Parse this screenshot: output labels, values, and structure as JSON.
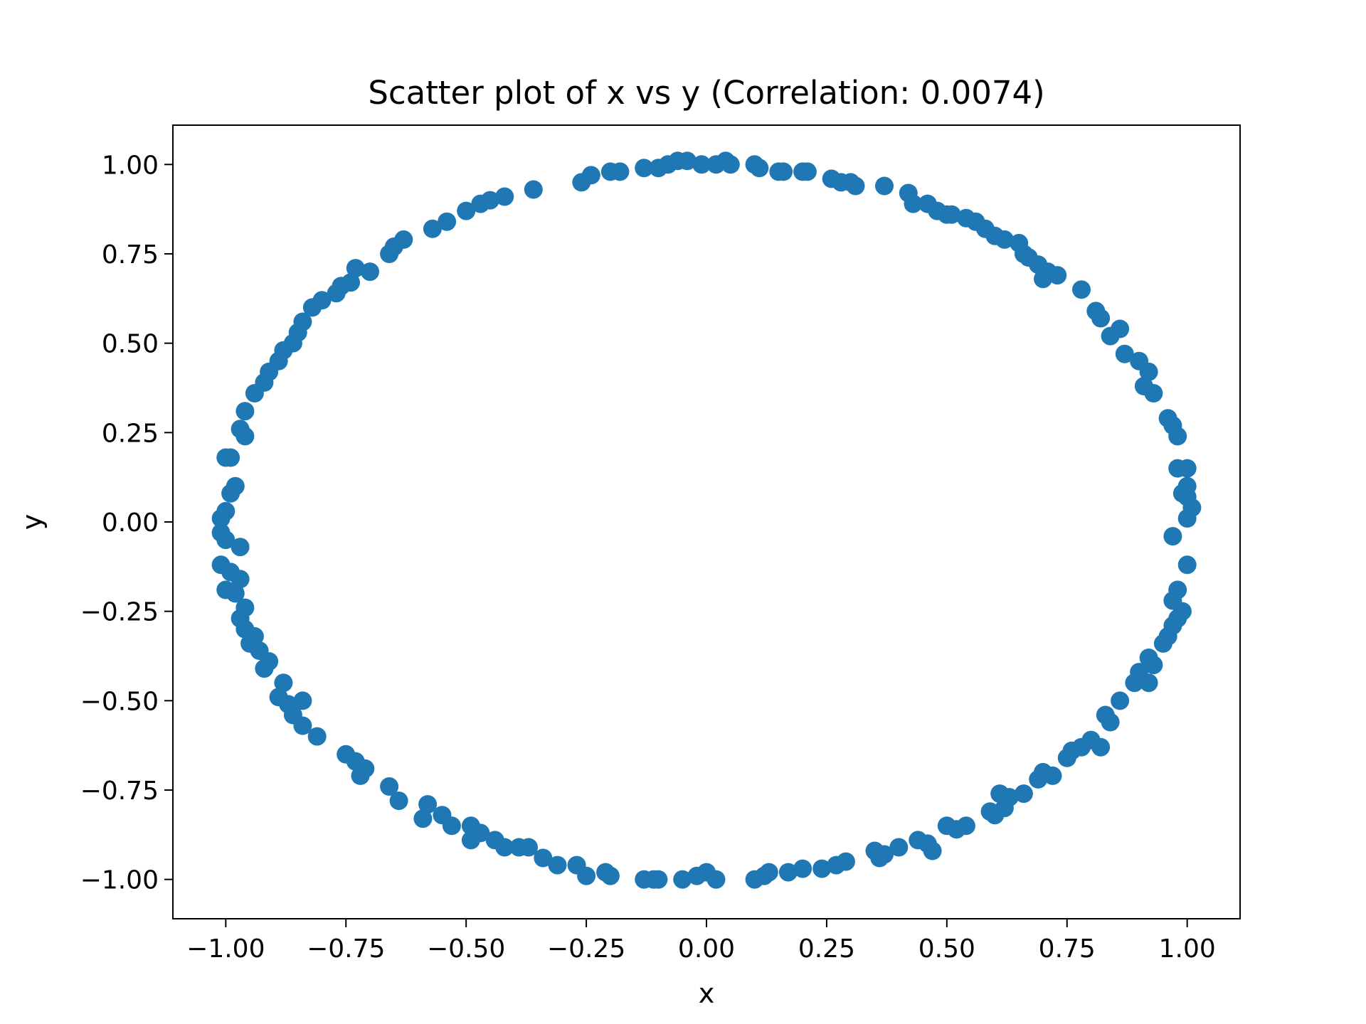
{
  "chart_data": {
    "type": "scatter",
    "title": "Scatter plot of x vs y (Correlation: 0.0074)",
    "xlabel": "x",
    "ylabel": "y",
    "xlim": [
      -1.11,
      1.11
    ],
    "ylim": [
      -1.11,
      1.11
    ],
    "xticks": [
      -1.0,
      -0.75,
      -0.5,
      -0.25,
      0.0,
      0.25,
      0.5,
      0.75,
      1.0
    ],
    "xtick_labels": [
      "−1.00",
      "−0.75",
      "−0.50",
      "−0.25",
      "0.00",
      "0.25",
      "0.50",
      "0.75",
      "1.00"
    ],
    "yticks": [
      1.0,
      0.75,
      0.5,
      0.25,
      0.0,
      -0.25,
      -0.5,
      -0.75,
      -1.0
    ],
    "ytick_labels": [
      "1.00",
      "0.75",
      "0.50",
      "0.25",
      "0.00",
      "−0.25",
      "−0.50",
      "−0.75",
      "−1.00"
    ],
    "grid": false,
    "legend": "none",
    "marker_color": "#1f77b4",
    "series": [
      {
        "points": [
          [
            0.04,
            1.01
          ],
          [
            0.02,
            1.0
          ],
          [
            -0.01,
            1.0
          ],
          [
            -0.04,
            1.01
          ],
          [
            -0.06,
            1.01
          ],
          [
            -0.08,
            1.0
          ],
          [
            -0.1,
            0.99
          ],
          [
            -0.13,
            0.99
          ],
          [
            -0.18,
            0.98
          ],
          [
            -0.2,
            0.98
          ],
          [
            -0.24,
            0.97
          ],
          [
            -0.26,
            0.95
          ],
          [
            -0.36,
            0.93
          ],
          [
            -0.42,
            0.91
          ],
          [
            -0.45,
            0.9
          ],
          [
            -0.47,
            0.89
          ],
          [
            -0.5,
            0.87
          ],
          [
            -0.54,
            0.84
          ],
          [
            -0.57,
            0.82
          ],
          [
            -0.63,
            0.79
          ],
          [
            -0.65,
            0.77
          ],
          [
            -0.66,
            0.75
          ],
          [
            -0.7,
            0.7
          ],
          [
            -0.73,
            0.71
          ],
          [
            -0.74,
            0.67
          ],
          [
            -0.76,
            0.66
          ],
          [
            -0.77,
            0.64
          ],
          [
            -0.8,
            0.62
          ],
          [
            -0.82,
            0.6
          ],
          [
            -0.84,
            0.56
          ],
          [
            -0.85,
            0.53
          ],
          [
            -0.86,
            0.5
          ],
          [
            -0.88,
            0.48
          ],
          [
            -0.89,
            0.45
          ],
          [
            -0.91,
            0.42
          ],
          [
            -0.92,
            0.39
          ],
          [
            -0.94,
            0.36
          ],
          [
            -0.96,
            0.31
          ],
          [
            -0.97,
            0.26
          ],
          [
            -0.96,
            0.24
          ],
          [
            -0.99,
            0.18
          ],
          [
            -1.0,
            0.18
          ],
          [
            -0.98,
            0.1
          ],
          [
            -0.99,
            0.08
          ],
          [
            -1.0,
            0.03
          ],
          [
            -1.01,
            0.01
          ],
          [
            -1.01,
            -0.03
          ],
          [
            -1.0,
            -0.05
          ],
          [
            -0.97,
            -0.07
          ],
          [
            -1.01,
            -0.12
          ],
          [
            -0.99,
            -0.14
          ],
          [
            -0.97,
            -0.16
          ],
          [
            -1.0,
            -0.19
          ],
          [
            -0.98,
            -0.2
          ],
          [
            -0.96,
            -0.24
          ],
          [
            -0.97,
            -0.27
          ],
          [
            -0.96,
            -0.3
          ],
          [
            -0.94,
            -0.32
          ],
          [
            -0.95,
            -0.34
          ],
          [
            -0.93,
            -0.36
          ],
          [
            -0.91,
            -0.39
          ],
          [
            -0.92,
            -0.41
          ],
          [
            -0.88,
            -0.45
          ],
          [
            -0.89,
            -0.49
          ],
          [
            -0.87,
            -0.51
          ],
          [
            -0.84,
            -0.5
          ],
          [
            -0.86,
            -0.54
          ],
          [
            -0.84,
            -0.57
          ],
          [
            -0.81,
            -0.6
          ],
          [
            -0.75,
            -0.65
          ],
          [
            -0.73,
            -0.67
          ],
          [
            -0.71,
            -0.69
          ],
          [
            -0.72,
            -0.71
          ],
          [
            -0.66,
            -0.74
          ],
          [
            -0.64,
            -0.78
          ],
          [
            -0.58,
            -0.79
          ],
          [
            -0.59,
            -0.83
          ],
          [
            -0.55,
            -0.82
          ],
          [
            -0.53,
            -0.85
          ],
          [
            -0.49,
            -0.85
          ],
          [
            -0.47,
            -0.87
          ],
          [
            -0.49,
            -0.89
          ],
          [
            -0.44,
            -0.89
          ],
          [
            -0.42,
            -0.91
          ],
          [
            -0.39,
            -0.91
          ],
          [
            -0.37,
            -0.91
          ],
          [
            -0.34,
            -0.94
          ],
          [
            -0.31,
            -0.96
          ],
          [
            -0.27,
            -0.96
          ],
          [
            -0.25,
            -0.99
          ],
          [
            -0.21,
            -0.98
          ],
          [
            -0.2,
            -0.99
          ],
          [
            -0.13,
            -1.0
          ],
          [
            -0.11,
            -1.0
          ],
          [
            -0.1,
            -1.0
          ],
          [
            -0.05,
            -1.0
          ],
          [
            -0.02,
            -0.99
          ],
          [
            0.0,
            -0.98
          ],
          [
            0.02,
            -1.0
          ],
          [
            0.1,
            -1.0
          ],
          [
            0.12,
            -0.99
          ],
          [
            0.13,
            -0.98
          ],
          [
            0.17,
            -0.98
          ],
          [
            0.2,
            -0.97
          ],
          [
            0.24,
            -0.97
          ],
          [
            0.27,
            -0.96
          ],
          [
            0.29,
            -0.95
          ],
          [
            0.35,
            -0.92
          ],
          [
            0.36,
            -0.94
          ],
          [
            0.37,
            -0.93
          ],
          [
            0.4,
            -0.91
          ],
          [
            0.44,
            -0.89
          ],
          [
            0.46,
            -0.9
          ],
          [
            0.47,
            -0.92
          ],
          [
            0.5,
            -0.85
          ],
          [
            0.52,
            -0.86
          ],
          [
            0.54,
            -0.85
          ],
          [
            0.59,
            -0.81
          ],
          [
            0.6,
            -0.82
          ],
          [
            0.62,
            -0.8
          ],
          [
            0.63,
            -0.77
          ],
          [
            0.61,
            -0.76
          ],
          [
            0.66,
            -0.76
          ],
          [
            0.69,
            -0.72
          ],
          [
            0.7,
            -0.7
          ],
          [
            0.72,
            -0.71
          ],
          [
            0.75,
            -0.66
          ],
          [
            0.76,
            -0.64
          ],
          [
            0.78,
            -0.63
          ],
          [
            0.8,
            -0.61
          ],
          [
            0.82,
            -0.63
          ],
          [
            0.83,
            -0.54
          ],
          [
            0.84,
            -0.56
          ],
          [
            0.86,
            -0.5
          ],
          [
            0.89,
            -0.45
          ],
          [
            0.9,
            -0.42
          ],
          [
            0.92,
            -0.45
          ],
          [
            0.93,
            -0.4
          ],
          [
            0.92,
            -0.38
          ],
          [
            0.95,
            -0.34
          ],
          [
            0.96,
            -0.32
          ],
          [
            0.97,
            -0.29
          ],
          [
            0.98,
            -0.27
          ],
          [
            0.99,
            -0.25
          ],
          [
            0.97,
            -0.22
          ],
          [
            0.98,
            -0.19
          ],
          [
            1.0,
            -0.12
          ],
          [
            0.97,
            -0.04
          ],
          [
            1.0,
            0.01
          ],
          [
            1.01,
            0.04
          ],
          [
            1.0,
            0.07
          ],
          [
            0.99,
            0.08
          ],
          [
            1.0,
            0.1
          ],
          [
            0.98,
            0.15
          ],
          [
            1.0,
            0.15
          ],
          [
            0.98,
            0.24
          ],
          [
            0.97,
            0.27
          ],
          [
            0.96,
            0.29
          ],
          [
            0.93,
            0.36
          ],
          [
            0.91,
            0.38
          ],
          [
            0.92,
            0.42
          ],
          [
            0.9,
            0.45
          ],
          [
            0.87,
            0.47
          ],
          [
            0.86,
            0.54
          ],
          [
            0.84,
            0.52
          ],
          [
            0.82,
            0.57
          ],
          [
            0.81,
            0.59
          ],
          [
            0.78,
            0.65
          ],
          [
            0.73,
            0.69
          ],
          [
            0.7,
            0.68
          ],
          [
            0.71,
            0.7
          ],
          [
            0.69,
            0.72
          ],
          [
            0.67,
            0.74
          ],
          [
            0.66,
            0.75
          ],
          [
            0.65,
            0.78
          ],
          [
            0.62,
            0.79
          ],
          [
            0.6,
            0.8
          ],
          [
            0.58,
            0.82
          ],
          [
            0.56,
            0.84
          ],
          [
            0.54,
            0.85
          ],
          [
            0.51,
            0.86
          ],
          [
            0.5,
            0.86
          ],
          [
            0.48,
            0.87
          ],
          [
            0.46,
            0.89
          ],
          [
            0.43,
            0.89
          ],
          [
            0.42,
            0.92
          ],
          [
            0.37,
            0.94
          ],
          [
            0.31,
            0.94
          ],
          [
            0.3,
            0.95
          ],
          [
            0.28,
            0.95
          ],
          [
            0.26,
            0.96
          ],
          [
            0.21,
            0.98
          ],
          [
            0.2,
            0.98
          ],
          [
            0.16,
            0.98
          ],
          [
            0.15,
            0.98
          ],
          [
            0.11,
            0.99
          ],
          [
            0.1,
            1.0
          ],
          [
            0.05,
            1.0
          ]
        ]
      }
    ]
  }
}
